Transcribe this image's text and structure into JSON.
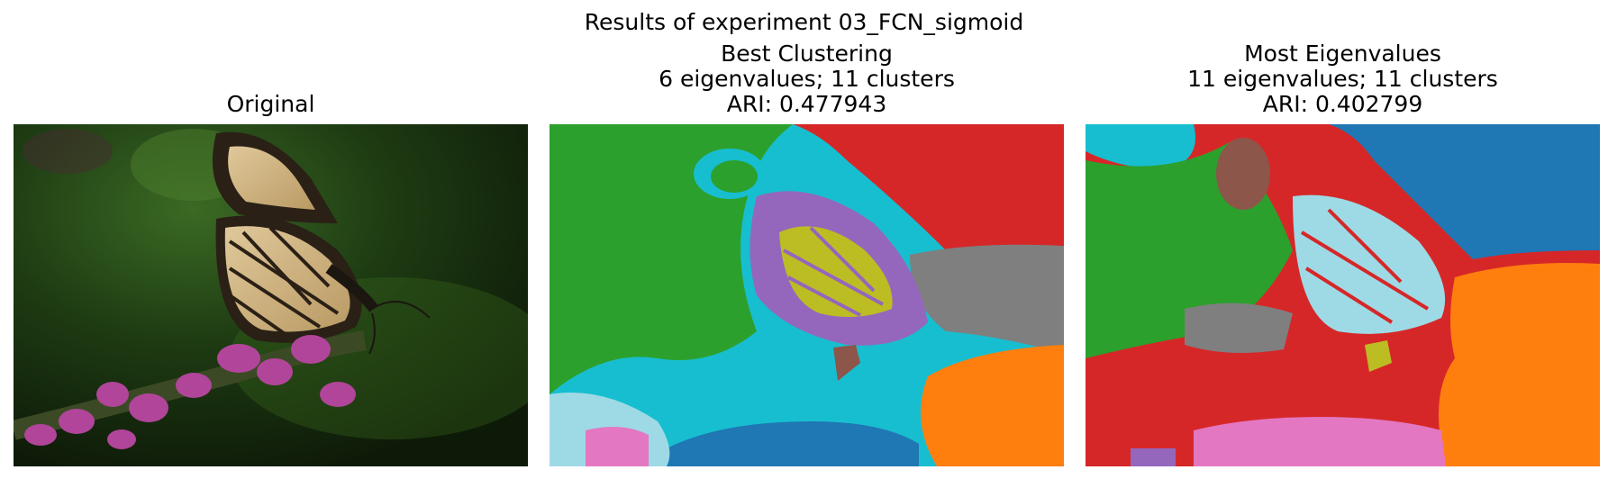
{
  "figure": {
    "suptitle": "Results of experiment 03_FCN_sigmoid"
  },
  "panels": [
    {
      "title": "Original"
    },
    {
      "title_lines": [
        "Best Clustering",
        "6 eigenvalues; 11 clusters",
        "ARI: 0.477943"
      ]
    },
    {
      "title_lines": [
        "Most Eigenvalues",
        "11 eigenvalues; 11 clusters",
        "ARI: 0.402799"
      ]
    }
  ],
  "chart_data": {
    "type": "image",
    "panels": [
      {
        "title": "Original",
        "content": "photo"
      },
      {
        "title": "Best Clustering",
        "eigenvalues": 6,
        "clusters": 11,
        "ari": 0.477943
      },
      {
        "title": "Most Eigenvalues",
        "eigenvalues": 11,
        "clusters": 11,
        "ari": 0.402799
      }
    ],
    "cluster_palette": [
      "#1f77b4",
      "#ff7f0e",
      "#2ca02c",
      "#d62728",
      "#9467bd",
      "#8c564b",
      "#e377c2",
      "#7f7f7f",
      "#bcbd22",
      "#17becf",
      "#9edae5"
    ]
  }
}
